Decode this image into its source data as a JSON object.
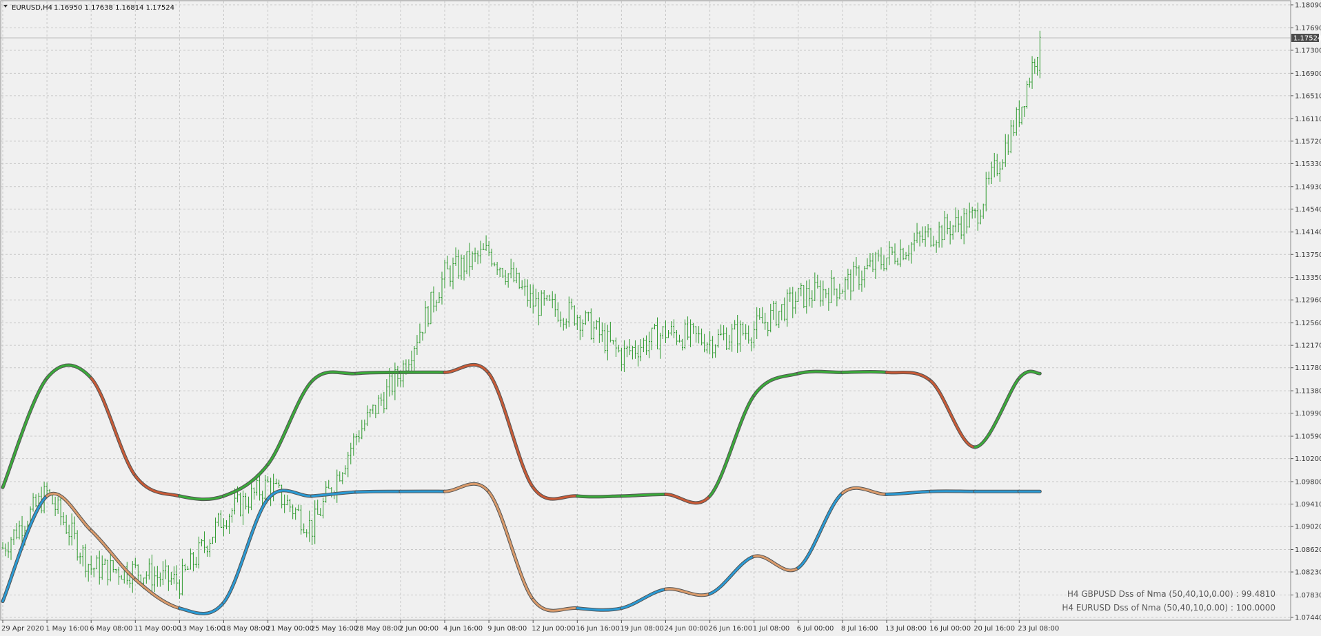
{
  "header": {
    "symbol": "EURUSD,H4",
    "ohlc": "1.16950 1.17638 1.16814 1.17524"
  },
  "price_tag": "1.17524",
  "indicator_labels": [
    "H4 GBPUSD Dss of Nma (50,40,10,0.00) : 99.4810",
    "H4 EURUSD Dss of Nma (50,40,10,0.00) : 100.0000"
  ],
  "colors": {
    "background": "#f0f0f0",
    "grid": "#c8c8c8",
    "bars": "#2e9a2e",
    "up": "#3aaa3a",
    "down_gbp": "#c85a36",
    "up_eur": "#2a9ad4",
    "down_eur": "#d99a6a",
    "tag_bg": "#4d4d4d"
  },
  "chart_data": {
    "type": "ohlc-bar",
    "symbol": "EURUSD",
    "timeframe": "H4",
    "y_ticks": [
      "1.18090",
      "1.17690",
      "1.17300",
      "1.16900",
      "1.16510",
      "1.16110",
      "1.15720",
      "1.15330",
      "1.14930",
      "1.14540",
      "1.14140",
      "1.13750",
      "1.13350",
      "1.12960",
      "1.12560",
      "1.12170",
      "1.11780",
      "1.11380",
      "1.10990",
      "1.10590",
      "1.10200",
      "1.09800",
      "1.09410",
      "1.09020",
      "1.08620",
      "1.08230",
      "1.07830",
      "1.07440"
    ],
    "ylim": [
      1.0744,
      1.1809
    ],
    "x_ticks": [
      "29 Apr 2020",
      "1 May 16:00",
      "6 May 08:00",
      "11 May 00:00",
      "13 May 16:00",
      "18 May 08:00",
      "21 May 00:00",
      "25 May 16:00",
      "28 May 08:00",
      "2 Jun 00:00",
      "4 Jun 16:00",
      "9 Jun 08:00",
      "12 Jun 00:00",
      "16 Jun 16:00",
      "19 Jun 08:00",
      "24 Jun 00:00",
      "26 Jun 16:00",
      "1 Jul 08:00",
      "6 Jul 00:00",
      "8 Jul 16:00",
      "13 Jul 08:00",
      "16 Jul 00:00",
      "20 Jul 16:00",
      "23 Jul 08:00"
    ],
    "last_ohlc": {
      "open": 1.1695,
      "high": 1.17638,
      "low": 1.16814,
      "close": 1.17524
    },
    "price_path": [
      {
        "x": "29 Apr 2020",
        "close": 1.0865
      },
      {
        "x": "1 May 16:00",
        "close": 1.096
      },
      {
        "x": "6 May 08:00",
        "close": 1.083
      },
      {
        "x": "11 May 00:00",
        "close": 1.0825
      },
      {
        "x": "13 May 16:00",
        "close": 1.0805
      },
      {
        "x": "18 May 08:00",
        "close": 1.092
      },
      {
        "x": "21 May 00:00",
        "close": 1.0975
      },
      {
        "x": "25 May 16:00",
        "close": 1.09
      },
      {
        "x": "28 May 08:00",
        "close": 1.106
      },
      {
        "x": "2 Jun 00:00",
        "close": 1.117
      },
      {
        "x": "4 Jun 16:00",
        "close": 1.134
      },
      {
        "x": "9 Jun 08:00",
        "close": 1.138
      },
      {
        "x": "12 Jun 00:00",
        "close": 1.129
      },
      {
        "x": "16 Jun 16:00",
        "close": 1.127
      },
      {
        "x": "19 Jun 08:00",
        "close": 1.12
      },
      {
        "x": "24 Jun 00:00",
        "close": 1.124
      },
      {
        "x": "26 Jun 16:00",
        "close": 1.1225
      },
      {
        "x": "1 Jul 08:00",
        "close": 1.1245
      },
      {
        "x": "6 Jul 00:00",
        "close": 1.13
      },
      {
        "x": "8 Jul 16:00",
        "close": 1.132
      },
      {
        "x": "13 Jul 08:00",
        "close": 1.137
      },
      {
        "x": "16 Jul 00:00",
        "close": 1.141
      },
      {
        "x": "20 Jul 16:00",
        "close": 1.144
      },
      {
        "x": "23 Jul 08:00",
        "close": 1.162
      },
      {
        "x": "23 Jul 08:00",
        "close": 1.17524
      }
    ],
    "indicator_scale_ylim": [
      1.0744,
      1.1809
    ],
    "series": [
      {
        "name": "H4 GBPUSD Dss of Nma (50,40,10,0.00)",
        "last_value": 99.481,
        "points": [
          {
            "x": "29 Apr 2020",
            "y": 1.097
          },
          {
            "x": "1 May 16:00",
            "y": 1.116
          },
          {
            "x": "6 May 08:00",
            "y": 1.116
          },
          {
            "x": "11 May 00:00",
            "y": 1.099
          },
          {
            "x": "13 May 16:00",
            "y": 1.0955
          },
          {
            "x": "18 May 08:00",
            "y": 1.0955
          },
          {
            "x": "21 May 00:00",
            "y": 1.101
          },
          {
            "x": "25 May 16:00",
            "y": 1.1155
          },
          {
            "x": "28 May 08:00",
            "y": 1.1168
          },
          {
            "x": "2 Jun 00:00",
            "y": 1.117
          },
          {
            "x": "4 Jun 16:00",
            "y": 1.117
          },
          {
            "x": "9 Jun 08:00",
            "y": 1.1168
          },
          {
            "x": "12 Jun 00:00",
            "y": 1.097
          },
          {
            "x": "16 Jun 16:00",
            "y": 1.0955
          },
          {
            "x": "19 Jun 08:00",
            "y": 1.0955
          },
          {
            "x": "24 Jun 00:00",
            "y": 1.0958
          },
          {
            "x": "26 Jun 16:00",
            "y": 1.0955
          },
          {
            "x": "1 Jul 08:00",
            "y": 1.113
          },
          {
            "x": "6 Jul 00:00",
            "y": 1.1168
          },
          {
            "x": "8 Jul 16:00",
            "y": 1.117
          },
          {
            "x": "13 Jul 08:00",
            "y": 1.117
          },
          {
            "x": "16 Jul 00:00",
            "y": 1.1155
          },
          {
            "x": "20 Jul 16:00",
            "y": 1.104
          },
          {
            "x": "23 Jul 08:00",
            "y": 1.116
          },
          {
            "x": "23 Jul 08:00",
            "y": 1.1168
          }
        ]
      },
      {
        "name": "H4 EURUSD Dss of Nma (50,40,10,0.00)",
        "last_value": 100.0,
        "points": [
          {
            "x": "29 Apr 2020",
            "y": 1.0772
          },
          {
            "x": "1 May 16:00",
            "y": 1.0955
          },
          {
            "x": "6 May 08:00",
            "y": 1.0895
          },
          {
            "x": "11 May 00:00",
            "y": 1.081
          },
          {
            "x": "13 May 16:00",
            "y": 1.076
          },
          {
            "x": "18 May 08:00",
            "y": 1.077
          },
          {
            "x": "21 May 00:00",
            "y": 1.095
          },
          {
            "x": "25 May 16:00",
            "y": 1.0955
          },
          {
            "x": "28 May 08:00",
            "y": 1.0962
          },
          {
            "x": "2 Jun 00:00",
            "y": 1.0963
          },
          {
            "x": "4 Jun 16:00",
            "y": 1.0963
          },
          {
            "x": "9 Jun 08:00",
            "y": 1.0962
          },
          {
            "x": "12 Jun 00:00",
            "y": 1.0775
          },
          {
            "x": "16 Jun 16:00",
            "y": 1.076
          },
          {
            "x": "19 Jun 08:00",
            "y": 1.076
          },
          {
            "x": "24 Jun 00:00",
            "y": 1.0793
          },
          {
            "x": "26 Jun 16:00",
            "y": 1.0785
          },
          {
            "x": "1 Jul 08:00",
            "y": 1.085
          },
          {
            "x": "6 Jul 00:00",
            "y": 1.083
          },
          {
            "x": "8 Jul 16:00",
            "y": 1.096
          },
          {
            "x": "13 Jul 08:00",
            "y": 1.0958
          },
          {
            "x": "16 Jul 00:00",
            "y": 1.0963
          },
          {
            "x": "20 Jul 16:00",
            "y": 1.0963
          },
          {
            "x": "23 Jul 08:00",
            "y": 1.0963
          },
          {
            "x": "23 Jul 08:00",
            "y": 1.0963
          }
        ]
      }
    ]
  }
}
